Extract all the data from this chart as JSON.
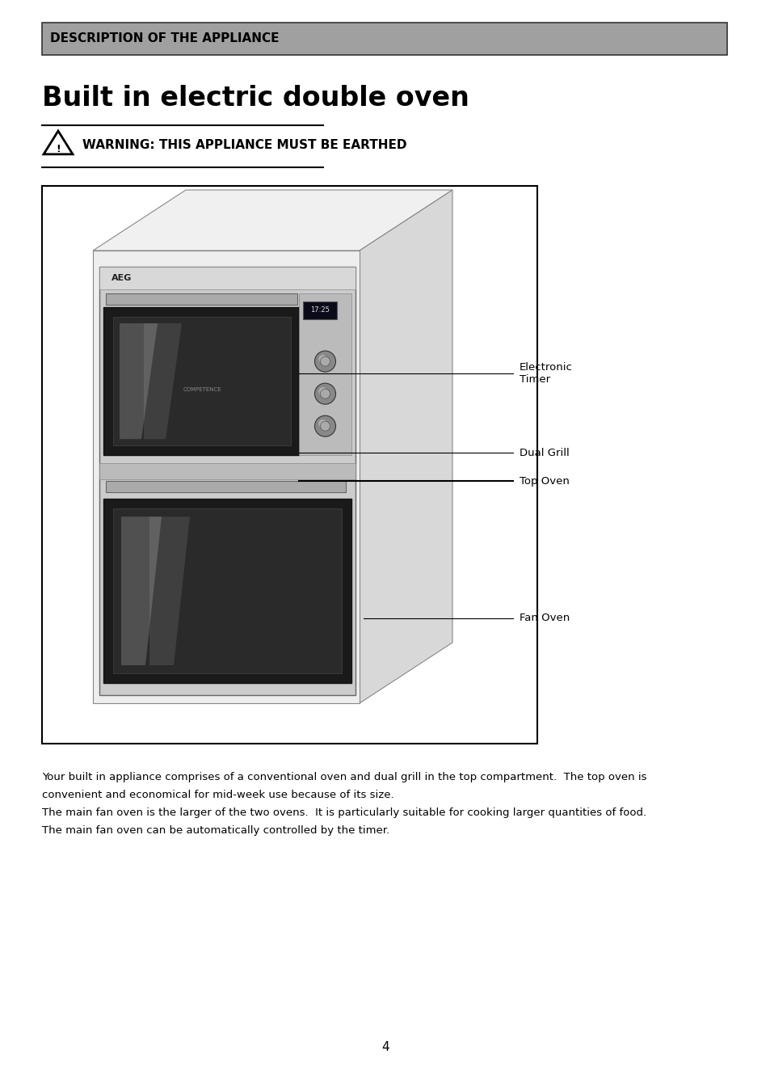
{
  "page_bg": "#ffffff",
  "header_bg": "#a0a0a0",
  "header_text": "DESCRIPTION OF THE APPLIANCE",
  "header_text_color": "#000000",
  "title": "Built in electric double oven",
  "warning_text": "WARNING: THIS APPLIANCE MUST BE EARTHED",
  "body_lines": [
    "Your built in appliance comprises of a conventional oven and dual grill in the top compartment.  The top oven is",
    "convenient and economical for mid-week use because of its size.",
    "The main fan oven is the larger of the two ovens.  It is particularly suitable for cooking larger quantities of food.",
    "The main fan oven can be automatically controlled by the timer."
  ],
  "labels": [
    "Electronic\nTimer",
    "Dual Grill",
    "Top Oven",
    "Fan Oven"
  ],
  "page_number": "4"
}
